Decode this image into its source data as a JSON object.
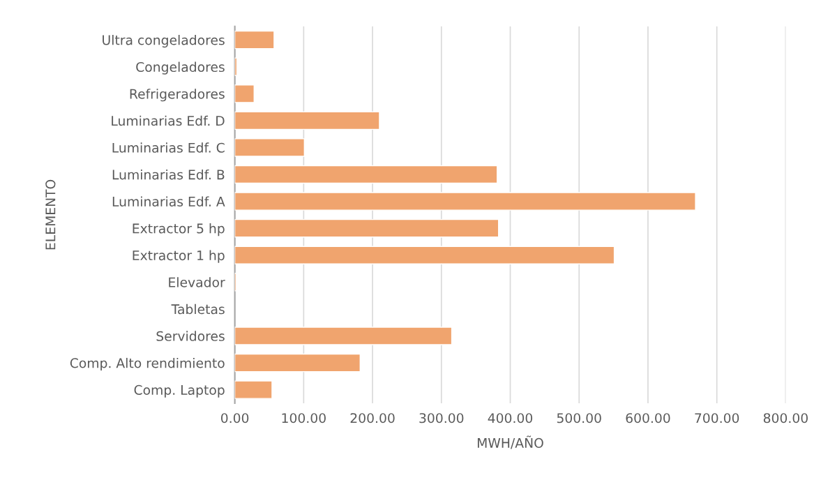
{
  "chart_data": {
    "type": "bar",
    "orientation": "horizontal",
    "xlabel": "MWH/AÑO",
    "ylabel": "ELEMENTO",
    "categories": [
      "Ultra congeladores",
      "Congeladores",
      "Refrigeradores",
      "Luminarias Edf. D",
      "Luminarias Edf. C",
      "Luminarias Edf. B",
      "Luminarias Edf. A",
      "Extractor 5 hp",
      "Extractor 1 hp",
      "Elevador",
      "Tabletas",
      "Servidores",
      "Comp. Alto rendimiento",
      "Comp. Laptop"
    ],
    "values": [
      57,
      3,
      28,
      210,
      101,
      381,
      669,
      383,
      551,
      2,
      null,
      315,
      182,
      54
    ],
    "color": "#f0a46e",
    "xlim": [
      0,
      800
    ],
    "xticks": [
      {
        "value": 0,
        "label": "0.00"
      },
      {
        "value": 100,
        "label": "100.00"
      },
      {
        "value": 200,
        "label": "200.00"
      },
      {
        "value": 300,
        "label": "300.00"
      },
      {
        "value": 400,
        "label": "400.00"
      },
      {
        "value": 500,
        "label": "500.00"
      },
      {
        "value": 600,
        "label": "600.00"
      },
      {
        "value": 700,
        "label": "700.00"
      },
      {
        "value": 800,
        "label": "800.00"
      }
    ],
    "grid": "x"
  }
}
